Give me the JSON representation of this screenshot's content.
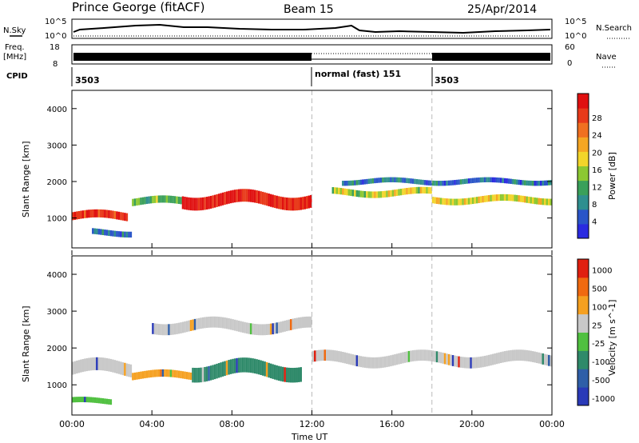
{
  "header": {
    "station": "Prince George (fitACF)",
    "beam": "Beam 15",
    "date": "25/Apr/2014"
  },
  "top_panels": {
    "nsky_label": "N.Sky",
    "nsky_ticks": [
      "10^5",
      "10^0"
    ],
    "nsearch_label": "N.Search",
    "nsearch_ticks": [
      "10^5",
      "10^0"
    ],
    "freq_label": "Freq.",
    "freq_unit": "[MHz]",
    "freq_ticks": [
      "18",
      "8"
    ],
    "nave_label": "Nave",
    "nave_ticks": [
      "60",
      "0"
    ],
    "cpid_label": "CPID",
    "cpid_segments": [
      {
        "label": "3503",
        "start_h": 0,
        "end_h": 12
      },
      {
        "label": "normal (fast) 151",
        "start_h": 12,
        "end_h": 18
      },
      {
        "label": "3503",
        "start_h": 18,
        "end_h": 24
      }
    ]
  },
  "chart_data": [
    {
      "type": "heatmap",
      "title": "",
      "xlabel": "Time UT",
      "ylabel": "Slant Range [km]",
      "xlim_hours": [
        0,
        24
      ],
      "ylim_km": [
        180,
        4500
      ],
      "x_tick_labels": [
        "00:00",
        "04:00",
        "08:00",
        "12:00",
        "16:00",
        "20:00",
        "00:00"
      ],
      "y_tick_labels": [
        "1000",
        "2000",
        "3000",
        "4000"
      ],
      "colorbar": {
        "label": "Power [dB]",
        "ticks": [
          "4",
          "8",
          "12",
          "16",
          "20",
          "24",
          "28"
        ],
        "colors": [
          "#2a2ae0",
          "#2a55c8",
          "#2f8f8f",
          "#3aa05a",
          "#8cc832",
          "#f2d52a",
          "#f5a623",
          "#f07020",
          "#e83a1a",
          "#e01010"
        ]
      },
      "bands": [
        {
          "t0": 0.0,
          "t1": 2.8,
          "r": 1050,
          "w": 220,
          "level": 0.9
        },
        {
          "t0": 1.0,
          "t1": 3.0,
          "r": 600,
          "w": 160,
          "level": 0.2
        },
        {
          "t0": 3.0,
          "t1": 5.5,
          "r": 1450,
          "w": 200,
          "level": 0.4
        },
        {
          "t0": 5.5,
          "t1": 12.0,
          "r": 1500,
          "w": 350,
          "level": 0.95
        },
        {
          "t0": 13.0,
          "t1": 18.0,
          "r": 1700,
          "w": 180,
          "level": 0.5
        },
        {
          "t0": 18.0,
          "t1": 24.0,
          "r": 1500,
          "w": 180,
          "level": 0.55
        },
        {
          "t0": 13.5,
          "t1": 24.0,
          "r": 2000,
          "w": 140,
          "level": 0.2
        }
      ]
    },
    {
      "type": "heatmap",
      "title": "",
      "xlabel": "Time UT",
      "ylabel": "Slant Range [km]",
      "xlim_hours": [
        0,
        24
      ],
      "ylim_km": [
        180,
        4500
      ],
      "x_tick_labels": [
        "00:00",
        "04:00",
        "08:00",
        "12:00",
        "16:00",
        "20:00",
        "00:00"
      ],
      "y_tick_labels": [
        "1000",
        "2000",
        "3000",
        "4000"
      ],
      "colorbar": {
        "label": "Velocity [m s^-1]",
        "ticks": [
          "1000",
          "500",
          "100",
          "25",
          "-25",
          "-100",
          "-500",
          "-1000"
        ],
        "colors": [
          "#2a3ab8",
          "#2f5fa8",
          "#2f8a6a",
          "#50c040",
          "#c8c8c8",
          "#f5a020",
          "#f06a10",
          "#e02010"
        ]
      },
      "bands": [
        {
          "t0": 0.0,
          "t1": 3.0,
          "r": 1450,
          "w": 350,
          "level": "ground"
        },
        {
          "t0": 0.0,
          "t1": 2.0,
          "r": 550,
          "w": 150,
          "level": "green"
        },
        {
          "t0": 3.0,
          "t1": 6.0,
          "r": 1250,
          "w": 200,
          "level": "orange"
        },
        {
          "t0": 6.0,
          "t1": 11.5,
          "r": 1400,
          "w": 400,
          "level": "teal"
        },
        {
          "t0": 12.0,
          "t1": 24.0,
          "r": 1700,
          "w": 300,
          "level": "ground"
        },
        {
          "t0": 4.0,
          "t1": 12.0,
          "r": 2600,
          "w": 300,
          "level": "ground"
        }
      ]
    }
  ]
}
